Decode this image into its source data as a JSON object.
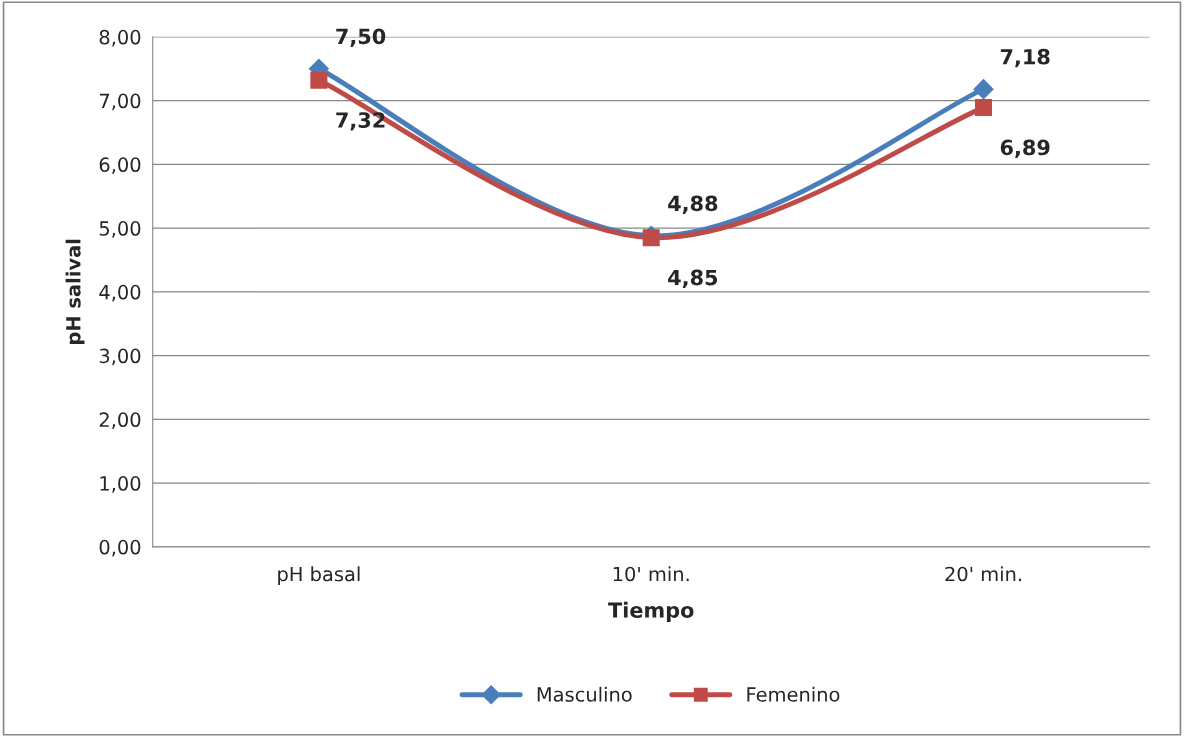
{
  "chart_data": {
    "type": "line",
    "xlabel": "Tiempo",
    "ylabel": "pH salival",
    "categories": [
      "pH basal",
      "10' min.",
      "20' min."
    ],
    "series": [
      {
        "name": "Masculino",
        "color": "#4a7ebb",
        "values": [
          7.5,
          4.88,
          7.18
        ],
        "marker": "diamond",
        "value_labels": [
          "7,50",
          "4,88",
          "7,18"
        ]
      },
      {
        "name": "Femenino",
        "color": "#be4b48",
        "values": [
          7.32,
          4.85,
          6.89
        ],
        "marker": "square",
        "value_labels": [
          "7,32",
          "4,85",
          "6,89"
        ]
      }
    ],
    "ylim": [
      0,
      8
    ],
    "yticks": [
      {
        "value": 0,
        "label": "0,00"
      },
      {
        "value": 1,
        "label": "1,00"
      },
      {
        "value": 2,
        "label": "2,00"
      },
      {
        "value": 3,
        "label": "3,00"
      },
      {
        "value": 4,
        "label": "4,00"
      },
      {
        "value": 5,
        "label": "5,00"
      },
      {
        "value": 6,
        "label": "6,00"
      },
      {
        "value": 7,
        "label": "7,00"
      },
      {
        "value": 8,
        "label": "8,00"
      }
    ],
    "grid": "y",
    "legend": "bottom"
  }
}
